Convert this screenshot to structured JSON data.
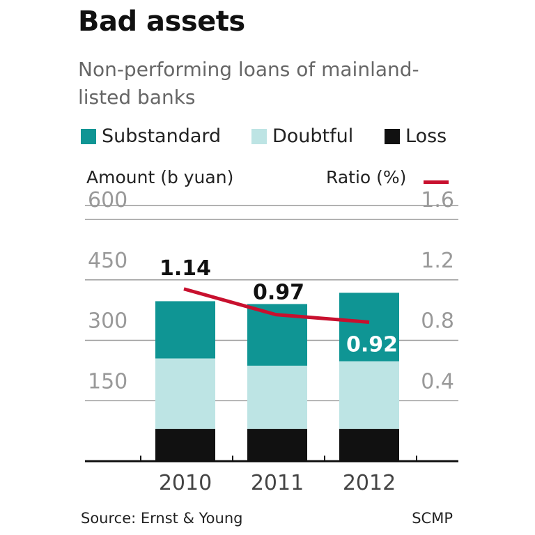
{
  "title": "Bad assets",
  "subtitle": "Non-performing loans of mainland-listed banks",
  "source": "Source: Ernst & Young",
  "credit": "SCMP",
  "colors": {
    "substandard": "#0f9594",
    "doubtful": "#bde4e4",
    "loss": "#111111",
    "ratio": "#c8102e",
    "grid": "#999999"
  },
  "chart_data": {
    "type": "bar",
    "stacked": true,
    "categories": [
      "2010",
      "2011",
      "2012"
    ],
    "series": [
      {
        "name": "Loss",
        "values": [
          80,
          80,
          80
        ]
      },
      {
        "name": "Doubtful",
        "values": [
          175,
          157,
          168
        ]
      },
      {
        "name": "Substandard",
        "values": [
          142,
          153,
          170
        ]
      }
    ],
    "line_series": {
      "name": "Ratio (%)",
      "values": [
        1.14,
        0.97,
        0.92
      ],
      "labels": [
        "1.14",
        "0.97",
        "0.92"
      ]
    },
    "ylabel_left": "Amount (b yuan)",
    "ylabel_right": "Ratio (%)",
    "ylim_left": [
      0,
      600
    ],
    "ylim_right": [
      0,
      1.6
    ],
    "yticks_left": [
      "150",
      "300",
      "450",
      "600"
    ],
    "yticks_right": [
      "0.4",
      "0.8",
      "1.2",
      "1.6"
    ],
    "grid": true,
    "legend_position": "top"
  }
}
